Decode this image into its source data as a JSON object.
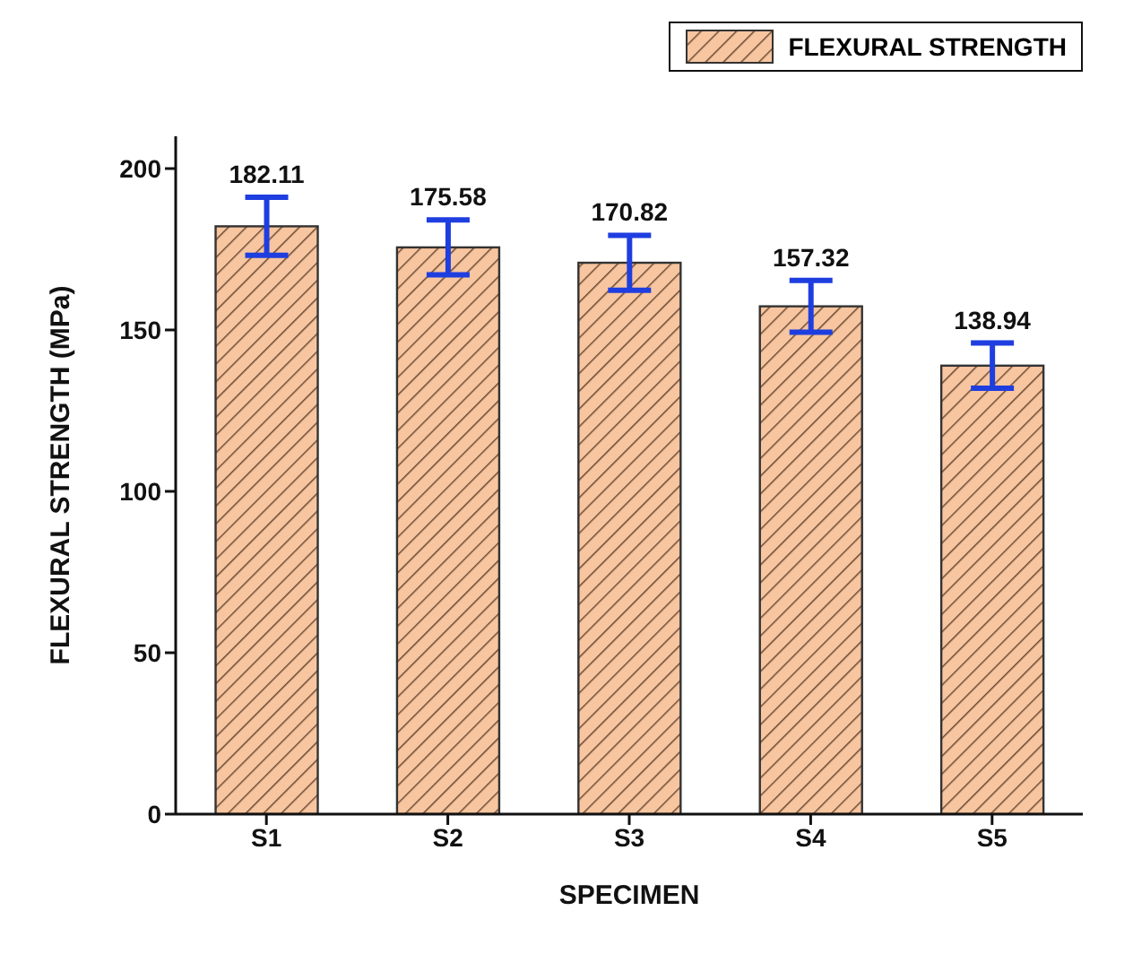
{
  "chart_data": {
    "type": "bar",
    "xlabel": "SPECIMEN",
    "ylabel": "FLEXURAL STRENGTH (MPa)",
    "categories": [
      "S1",
      "S2",
      "S3",
      "S4",
      "S5"
    ],
    "series": [
      {
        "name": "FLEXURAL STRENGTH",
        "color": "#f7c59f",
        "values": [
          182.11,
          175.58,
          170.82,
          157.32,
          138.94
        ],
        "errors": [
          9,
          8.5,
          8.5,
          8,
          7
        ]
      }
    ],
    "ylim": [
      0,
      210
    ],
    "yticks": [
      0,
      50,
      100,
      150,
      200
    ],
    "data_labels": true,
    "legend": "top right",
    "grid": false
  }
}
